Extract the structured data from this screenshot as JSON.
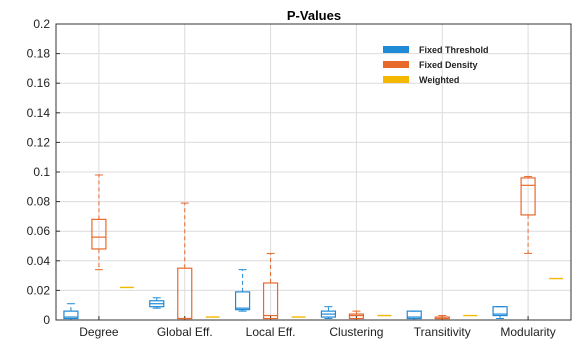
{
  "chart_data": {
    "type": "boxplot",
    "title": "P-Values",
    "xlabel": "",
    "ylabel": "",
    "ylim": [
      0,
      0.2
    ],
    "yticks": [
      0,
      0.02,
      0.04,
      0.06,
      0.08,
      0.1,
      0.12,
      0.14,
      0.16,
      0.18,
      0.2
    ],
    "ytick_labels": [
      "0",
      "0.02",
      "0.04",
      "0.06",
      "0.08",
      "0.1",
      "0.12",
      "0.14",
      "0.16",
      "0.18",
      "0.2"
    ],
    "categories": [
      "Degree",
      "Global Eff.",
      "Local Eff.",
      "Clustering",
      "Transitivity",
      "Modularity"
    ],
    "grid": true,
    "legend_position": "top-right",
    "series": [
      {
        "name": "Fixed Threshold",
        "color": "#1f8ad6",
        "boxes": [
          {
            "whisker_low": 0.0,
            "q1": 0.001,
            "median": 0.002,
            "q3": 0.006,
            "whisker_high": 0.011
          },
          {
            "whisker_low": 0.008,
            "q1": 0.009,
            "median": 0.011,
            "q3": 0.013,
            "whisker_high": 0.015
          },
          {
            "whisker_low": 0.006,
            "q1": 0.007,
            "median": 0.008,
            "q3": 0.019,
            "whisker_high": 0.034
          },
          {
            "whisker_low": 0.001,
            "q1": 0.002,
            "median": 0.004,
            "q3": 0.006,
            "whisker_high": 0.009
          },
          {
            "whisker_low": 0.0,
            "q1": 0.001,
            "median": 0.002,
            "q3": 0.006,
            "whisker_high": 0.006
          },
          {
            "whisker_low": 0.001,
            "q1": 0.003,
            "median": 0.004,
            "q3": 0.009,
            "whisker_high": 0.009
          }
        ]
      },
      {
        "name": "Fixed Density",
        "color": "#e8692c",
        "boxes": [
          {
            "whisker_low": 0.034,
            "q1": 0.048,
            "median": 0.056,
            "q3": 0.068,
            "whisker_high": 0.098
          },
          {
            "whisker_low": 0.0,
            "q1": 0.001,
            "median": 0.001,
            "q3": 0.035,
            "whisker_high": 0.079
          },
          {
            "whisker_low": 0.0,
            "q1": 0.001,
            "median": 0.003,
            "q3": 0.025,
            "whisker_high": 0.045
          },
          {
            "whisker_low": 0.0,
            "q1": 0.001,
            "median": 0.003,
            "q3": 0.004,
            "whisker_high": 0.006
          },
          {
            "whisker_low": 0.0,
            "q1": 0.001,
            "median": 0.001,
            "q3": 0.002,
            "whisker_high": 0.003
          },
          {
            "whisker_low": 0.045,
            "q1": 0.071,
            "median": 0.091,
            "q3": 0.096,
            "whisker_high": 0.097
          }
        ]
      },
      {
        "name": "Weighted",
        "color": "#f5b800",
        "boxes": [
          {
            "whisker_low": 0.022,
            "q1": 0.022,
            "median": 0.022,
            "q3": 0.022,
            "whisker_high": 0.022
          },
          {
            "whisker_low": 0.002,
            "q1": 0.002,
            "median": 0.002,
            "q3": 0.002,
            "whisker_high": 0.002
          },
          {
            "whisker_low": 0.002,
            "q1": 0.002,
            "median": 0.002,
            "q3": 0.002,
            "whisker_high": 0.002
          },
          {
            "whisker_low": 0.003,
            "q1": 0.003,
            "median": 0.003,
            "q3": 0.003,
            "whisker_high": 0.003
          },
          {
            "whisker_low": 0.003,
            "q1": 0.003,
            "median": 0.003,
            "q3": 0.003,
            "whisker_high": 0.003
          },
          {
            "whisker_low": 0.028,
            "q1": 0.028,
            "median": 0.028,
            "q3": 0.028,
            "whisker_high": 0.028
          }
        ]
      }
    ]
  }
}
